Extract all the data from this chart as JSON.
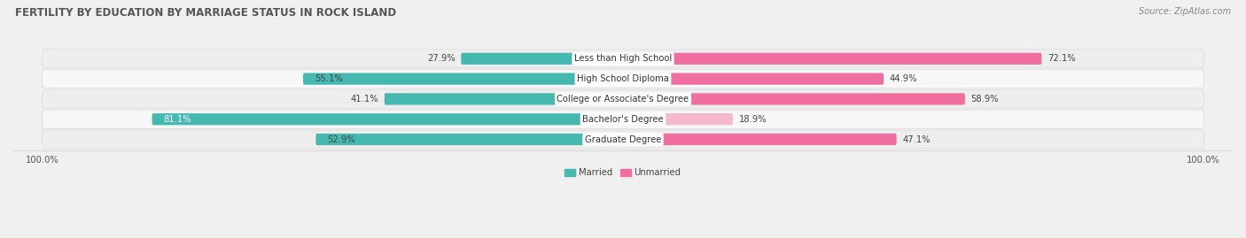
{
  "title": "FERTILITY BY EDUCATION BY MARRIAGE STATUS IN ROCK ISLAND",
  "source": "Source: ZipAtlas.com",
  "categories": [
    "Less than High School",
    "High School Diploma",
    "College or Associate's Degree",
    "Bachelor's Degree",
    "Graduate Degree"
  ],
  "married": [
    27.9,
    55.1,
    41.1,
    81.1,
    52.9
  ],
  "unmarried": [
    72.1,
    44.9,
    58.9,
    18.9,
    47.1
  ],
  "married_color": "#45b8b0",
  "unmarried_colors": [
    "#f06fa0",
    "#f06fa0",
    "#f06fa0",
    "#f5b8cc",
    "#f06fa0"
  ],
  "married_label_colors": [
    "#444444",
    "#444444",
    "#444444",
    "#ffffff",
    "#444444"
  ],
  "row_bg_even": "#eeeeee",
  "row_bg_odd": "#f7f7f7",
  "title_fontsize": 8.5,
  "label_fontsize": 7.2,
  "value_fontsize": 7.2,
  "source_fontsize": 7
}
